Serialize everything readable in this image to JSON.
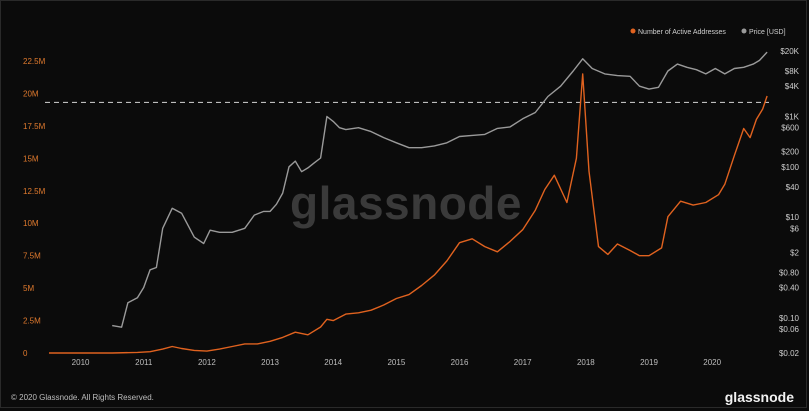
{
  "chart_data": {
    "type": "line",
    "watermark": "glassnode",
    "footer": {
      "copyright": "© 2020 Glassnode. All Rights Reserved.",
      "logo": "glassnode"
    },
    "x_ticks": [
      "2010",
      "2011",
      "2012",
      "2013",
      "2014",
      "2015",
      "2016",
      "2017",
      "2018",
      "2019",
      "2020"
    ],
    "x_range": [
      2009.5,
      2020.9
    ],
    "left_axis": {
      "ticks": [
        "0",
        "2.5M",
        "5M",
        "7.5M",
        "10M",
        "12.5M",
        "15M",
        "17.5M",
        "20M",
        "22.5M"
      ],
      "values": [
        0,
        2500000,
        5000000,
        7500000,
        10000000,
        12500000,
        15000000,
        17500000,
        20000000,
        22500000
      ],
      "range": [
        0,
        22500000
      ]
    },
    "right_axis": {
      "scale": "log",
      "ticks": [
        "$0.02",
        "$0.06",
        "$0.10",
        "$0.40",
        "$0.80",
        "$2",
        "$6",
        "$10",
        "$40",
        "$100",
        "$200",
        "$600",
        "$1K",
        "$4K",
        "$8K",
        "$20K"
      ],
      "values": [
        0.02,
        0.06,
        0.1,
        0.4,
        0.8,
        2,
        6,
        10,
        40,
        100,
        200,
        600,
        1000,
        4000,
        8000,
        20000
      ],
      "range": [
        0.02,
        20000
      ]
    },
    "reference_line": {
      "axis": "right",
      "value": 1900,
      "style": "dashed",
      "color": "#bdbdbd"
    },
    "legend_position": "top-right",
    "series": [
      {
        "name": "Number of Active Addresses",
        "axis": "left",
        "color": "#e0621f",
        "x": [
          2009.5,
          2010.0,
          2010.5,
          2010.9,
          2011.1,
          2011.3,
          2011.45,
          2011.6,
          2011.8,
          2012.0,
          2012.2,
          2012.4,
          2012.6,
          2012.8,
          2013.0,
          2013.2,
          2013.4,
          2013.6,
          2013.8,
          2013.9,
          2014.0,
          2014.2,
          2014.4,
          2014.6,
          2014.8,
          2015.0,
          2015.2,
          2015.4,
          2015.6,
          2015.8,
          2016.0,
          2016.2,
          2016.4,
          2016.6,
          2016.8,
          2017.0,
          2017.2,
          2017.35,
          2017.5,
          2017.7,
          2017.85,
          2017.95,
          2018.05,
          2018.2,
          2018.35,
          2018.5,
          2018.7,
          2018.85,
          2019.0,
          2019.2,
          2019.3,
          2019.5,
          2019.7,
          2019.9,
          2020.1,
          2020.2,
          2020.35,
          2020.5,
          2020.6,
          2020.7,
          2020.8,
          2020.87
        ],
        "values": [
          0,
          0,
          0,
          50000,
          100000,
          300000,
          500000,
          350000,
          200000,
          150000,
          300000,
          500000,
          700000,
          700000,
          900000,
          1200000,
          1600000,
          1400000,
          2000000,
          2600000,
          2500000,
          3000000,
          3100000,
          3300000,
          3700000,
          4200000,
          4500000,
          5200000,
          6000000,
          7100000,
          8500000,
          8800000,
          8200000,
          7800000,
          8600000,
          9500000,
          11000000,
          12600000,
          13700000,
          11600000,
          15000000,
          21500000,
          14000000,
          8200000,
          7600000,
          8400000,
          7900000,
          7500000,
          7500000,
          8100000,
          10500000,
          11700000,
          11400000,
          11600000,
          12200000,
          13000000,
          15200000,
          17300000,
          16600000,
          18000000,
          18800000,
          19800000
        ]
      },
      {
        "name": "Price [USD]",
        "axis": "right",
        "color": "#9a9a9a",
        "x": [
          2010.5,
          2010.65,
          2010.75,
          2010.9,
          2011.0,
          2011.1,
          2011.2,
          2011.3,
          2011.45,
          2011.6,
          2011.8,
          2011.95,
          2012.05,
          2012.2,
          2012.4,
          2012.6,
          2012.75,
          2012.9,
          2013.0,
          2013.1,
          2013.2,
          2013.3,
          2013.4,
          2013.5,
          2013.6,
          2013.7,
          2013.8,
          2013.9,
          2014.0,
          2014.1,
          2014.2,
          2014.4,
          2014.6,
          2014.8,
          2015.0,
          2015.2,
          2015.4,
          2015.6,
          2015.8,
          2016.0,
          2016.2,
          2016.4,
          2016.6,
          2016.8,
          2017.0,
          2017.2,
          2017.4,
          2017.6,
          2017.8,
          2017.95,
          2018.1,
          2018.3,
          2018.5,
          2018.7,
          2018.85,
          2019.0,
          2019.15,
          2019.3,
          2019.45,
          2019.6,
          2019.75,
          2019.9,
          2020.05,
          2020.2,
          2020.35,
          2020.5,
          2020.65,
          2020.75,
          2020.87
        ],
        "values": [
          0.07,
          0.065,
          0.2,
          0.25,
          0.4,
          0.9,
          1.0,
          6,
          15,
          12,
          4,
          3,
          5.5,
          5,
          5,
          6,
          11,
          13,
          13,
          18,
          30,
          100,
          130,
          80,
          95,
          120,
          150,
          1000,
          800,
          600,
          550,
          600,
          500,
          380,
          300,
          240,
          240,
          260,
          300,
          400,
          420,
          440,
          580,
          620,
          900,
          1200,
          2500,
          4000,
          8000,
          14000,
          9000,
          7000,
          6500,
          6300,
          4000,
          3500,
          3800,
          8000,
          11000,
          9500,
          8500,
          7000,
          9000,
          7000,
          9000,
          9500,
          11000,
          13000,
          19000
        ]
      }
    ]
  }
}
